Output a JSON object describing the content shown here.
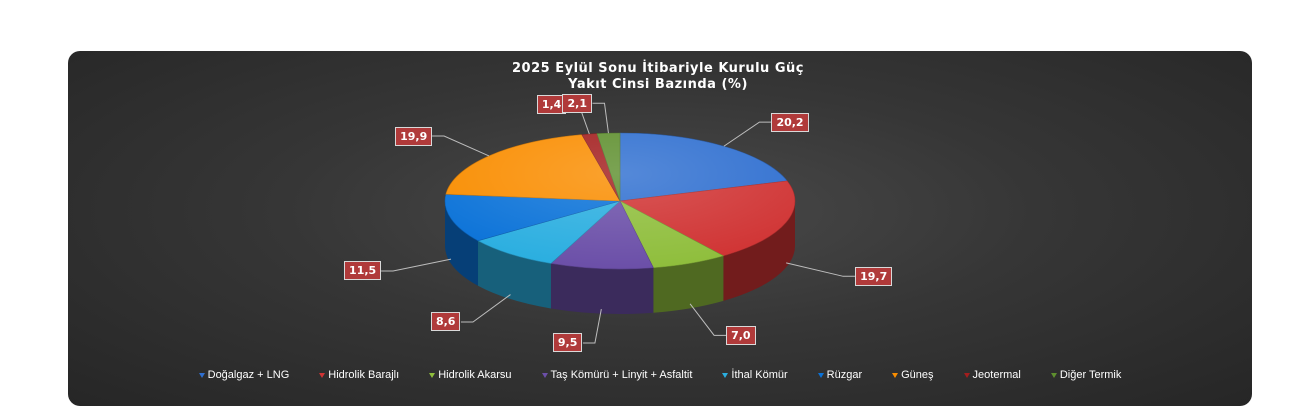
{
  "chart_data": {
    "type": "pie",
    "title_line1": "2025 Eylül Sonu İtibariyle Kurulu Güç",
    "title_line2": "Yakıt Cinsi Bazında (%)",
    "legend_position": "bottom",
    "slices": [
      {
        "name": "Doğalgaz + LNG",
        "value": 20.2,
        "label": "20,2",
        "color": "#2f6fd0"
      },
      {
        "name": "Hidrolik Barajlı",
        "value": 19.7,
        "label": "19,7",
        "color": "#d03333"
      },
      {
        "name": "Hidrolik Akarsu",
        "value": 7.0,
        "label": "7,0",
        "color": "#8fbe3c"
      },
      {
        "name": "Taş Kömürü + Linyit + Asfaltit",
        "value": 9.5,
        "label": "9,5",
        "color": "#6b4fa8"
      },
      {
        "name": "İthal Kömür",
        "value": 8.6,
        "label": "8,6",
        "color": "#2aaee0"
      },
      {
        "name": "Rüzgar",
        "value": 11.5,
        "label": "11,5",
        "color": "#0a72d8"
      },
      {
        "name": "Güneş",
        "value": 19.9,
        "label": "19,9",
        "color": "#f98d00"
      },
      {
        "name": "Jeotermal",
        "value": 1.4,
        "label": "1,4",
        "color": "#a31e1e"
      },
      {
        "name": "Diğer Termik",
        "value": 2.1,
        "label": "2,1",
        "color": "#5e8f2e"
      }
    ]
  }
}
